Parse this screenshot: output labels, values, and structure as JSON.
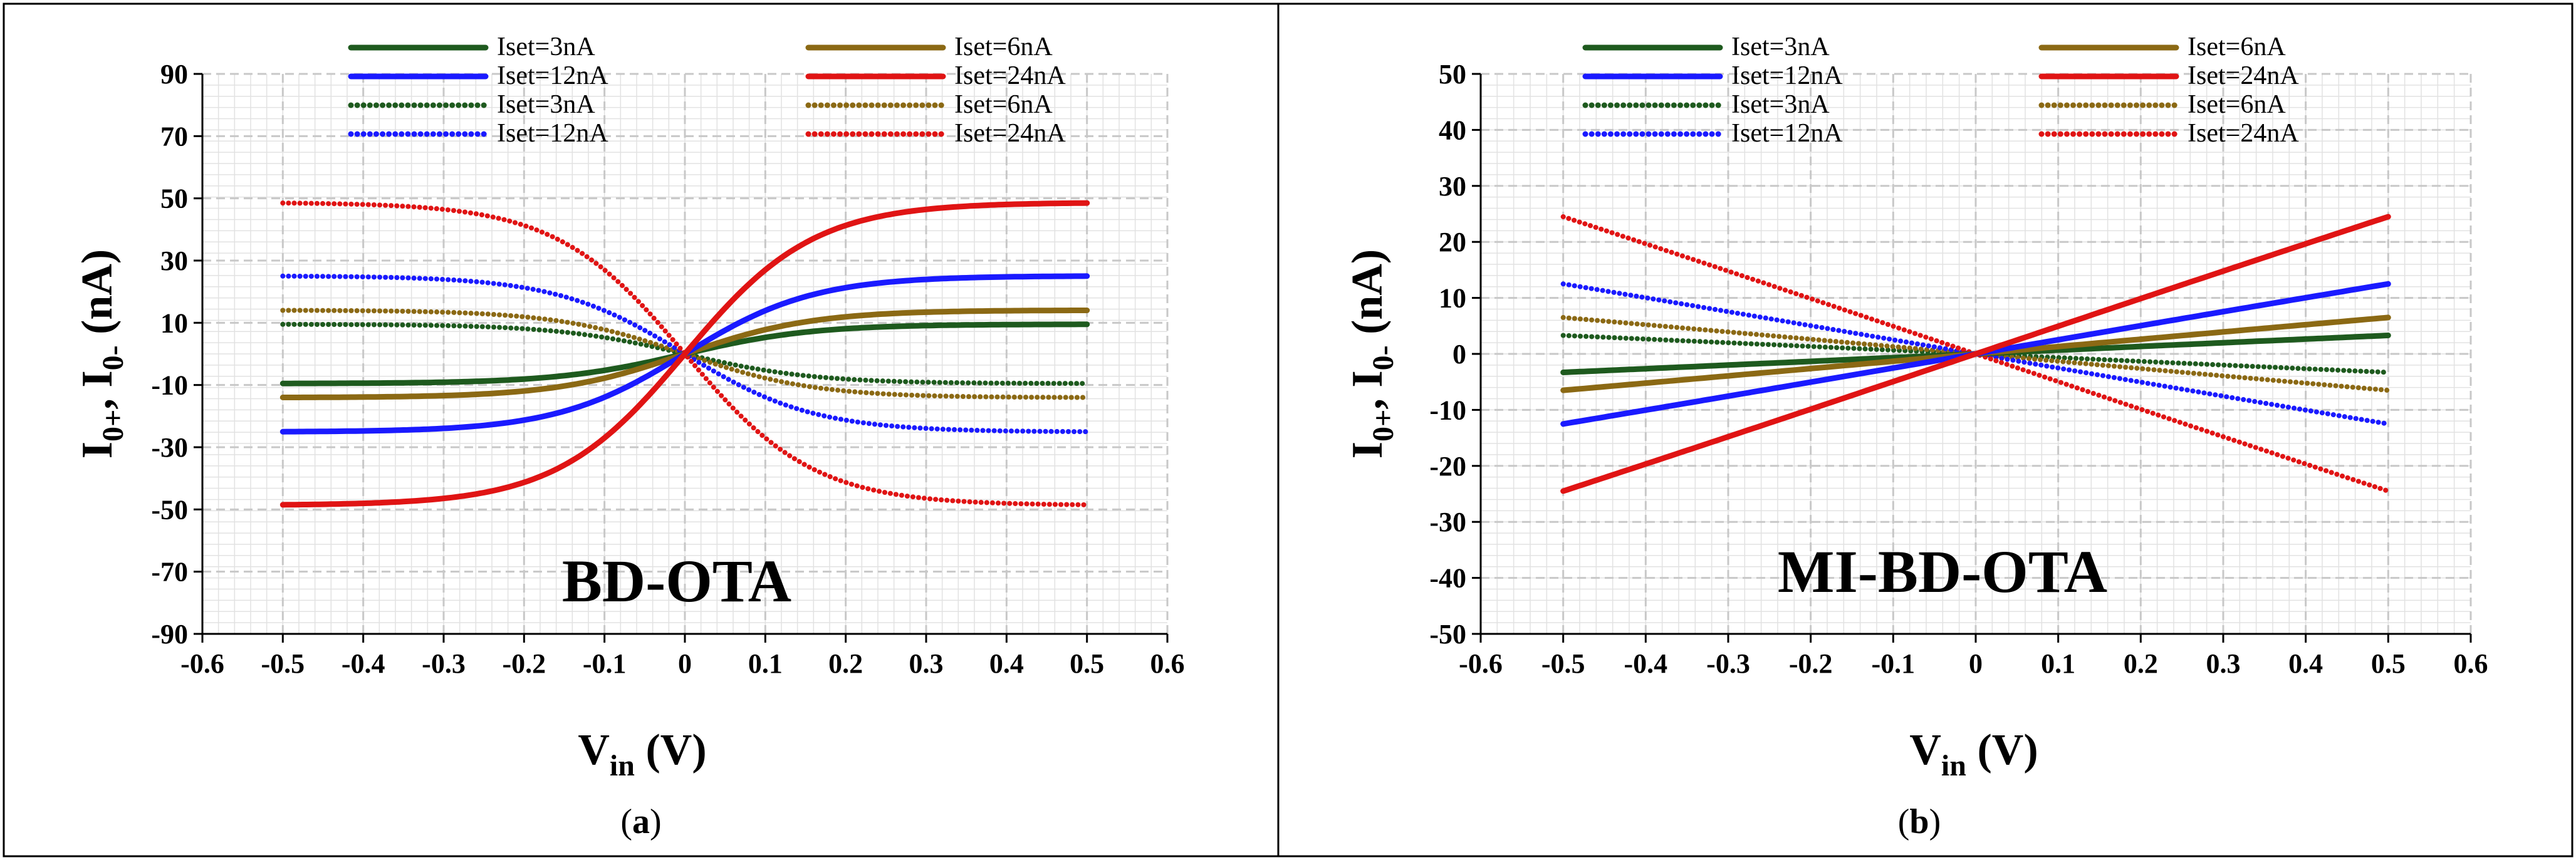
{
  "figure": {
    "caption_a": "(a)",
    "caption_a_letter": "a",
    "caption_b": "(b)",
    "caption_b_letter": "b"
  },
  "chart_data": [
    {
      "type": "line",
      "panel": "a",
      "title": "BD-OTA",
      "xlabel": "V_in (V)",
      "ylabel": "I_0+, I_0- (nA)",
      "xlim": [
        -0.6,
        0.6
      ],
      "ylim": [
        -90,
        90
      ],
      "xticks": [
        -0.6,
        -0.5,
        -0.4,
        -0.3,
        -0.2,
        -0.1,
        0,
        0.1,
        0.2,
        0.3,
        0.4,
        0.5,
        0.6
      ],
      "xtick_labels": [
        "-0.6",
        "-0.5",
        "-0.4",
        "-0.3",
        "-0.2",
        "-0.1",
        "0",
        "0.1",
        "0.2",
        "0.3",
        "0.4",
        "0.5",
        "0.6"
      ],
      "yticks": [
        90,
        70,
        50,
        30,
        10,
        -10,
        -30,
        -50,
        -70,
        -90
      ],
      "ytick_labels": [
        "90",
        "70",
        "50",
        "30",
        "10",
        "-10",
        "-30",
        "-50",
        "-70",
        "-90"
      ],
      "grid": true,
      "legend_position": "top",
      "series": [
        {
          "name": "Iset=3nA",
          "style": "solid",
          "color": "#1e5a1e",
          "amplitude": 9.5,
          "sat_v": 0.16,
          "sign": 1
        },
        {
          "name": "Iset=6nA",
          "style": "solid",
          "color": "#8b6914",
          "amplitude": 14,
          "sat_v": 0.16,
          "sign": 1
        },
        {
          "name": "Iset=12nA",
          "style": "solid",
          "color": "#1a1aff",
          "amplitude": 25,
          "sat_v": 0.16,
          "sign": 1
        },
        {
          "name": "Iset=24nA",
          "style": "solid",
          "color": "#e01414",
          "amplitude": 48.5,
          "sat_v": 0.16,
          "sign": 1
        },
        {
          "name": "Iset=3nA",
          "style": "dotted",
          "color": "#1e5a1e",
          "amplitude": 9.5,
          "sat_v": 0.16,
          "sign": -1
        },
        {
          "name": "Iset=6nA",
          "style": "dotted",
          "color": "#8b6914",
          "amplitude": 14,
          "sat_v": 0.16,
          "sign": -1
        },
        {
          "name": "Iset=12nA",
          "style": "dotted",
          "color": "#1a1aff",
          "amplitude": 25,
          "sat_v": 0.16,
          "sign": -1
        },
        {
          "name": "Iset=24nA",
          "style": "dotted",
          "color": "#e01414",
          "amplitude": 48.5,
          "sat_v": 0.16,
          "sign": -1
        }
      ]
    },
    {
      "type": "line",
      "panel": "b",
      "title": "MI-BD-OTA",
      "xlabel": "V_in (V)",
      "ylabel": "I_0+, I_0- (nA)",
      "xlim": [
        -0.6,
        0.6
      ],
      "ylim": [
        -50,
        50
      ],
      "xticks": [
        -0.6,
        -0.5,
        -0.4,
        -0.3,
        -0.2,
        -0.1,
        0,
        0.1,
        0.2,
        0.3,
        0.4,
        0.5,
        0.6
      ],
      "xtick_labels": [
        "-0.6",
        "-0.5",
        "-0.4",
        "-0.3",
        "-0.2",
        "-0.1",
        "0",
        "0.1",
        "0.2",
        "0.3",
        "0.4",
        "0.5",
        "0.6"
      ],
      "yticks": [
        50,
        40,
        30,
        20,
        10,
        0,
        -10,
        -20,
        -30,
        -40,
        -50
      ],
      "ytick_labels": [
        "50",
        "40",
        "30",
        "20",
        "10",
        "0",
        "-10",
        "-20",
        "-30",
        "-40",
        "-50"
      ],
      "grid": true,
      "legend_position": "top",
      "series": [
        {
          "name": "Iset=3nA",
          "style": "solid",
          "color": "#1e5a1e",
          "amplitude": 3.3,
          "sat_v": 3.0,
          "sign": 1
        },
        {
          "name": "Iset=6nA",
          "style": "solid",
          "color": "#8b6914",
          "amplitude": 6.5,
          "sat_v": 3.0,
          "sign": 1
        },
        {
          "name": "Iset=12nA",
          "style": "solid",
          "color": "#1a1aff",
          "amplitude": 12.5,
          "sat_v": 3.0,
          "sign": 1
        },
        {
          "name": "Iset=24nA",
          "style": "solid",
          "color": "#e01414",
          "amplitude": 24.5,
          "sat_v": 3.0,
          "sign": 1
        },
        {
          "name": "Iset=3nA",
          "style": "dotted",
          "color": "#1e5a1e",
          "amplitude": 3.3,
          "sat_v": 3.0,
          "sign": -1
        },
        {
          "name": "Iset=6nA",
          "style": "dotted",
          "color": "#8b6914",
          "amplitude": 6.5,
          "sat_v": 3.0,
          "sign": -1
        },
        {
          "name": "Iset=12nA",
          "style": "dotted",
          "color": "#1a1aff",
          "amplitude": 12.5,
          "sat_v": 3.0,
          "sign": -1
        },
        {
          "name": "Iset=24nA",
          "style": "dotted",
          "color": "#e01414",
          "amplitude": 24.5,
          "sat_v": 3.0,
          "sign": -1
        }
      ]
    }
  ]
}
